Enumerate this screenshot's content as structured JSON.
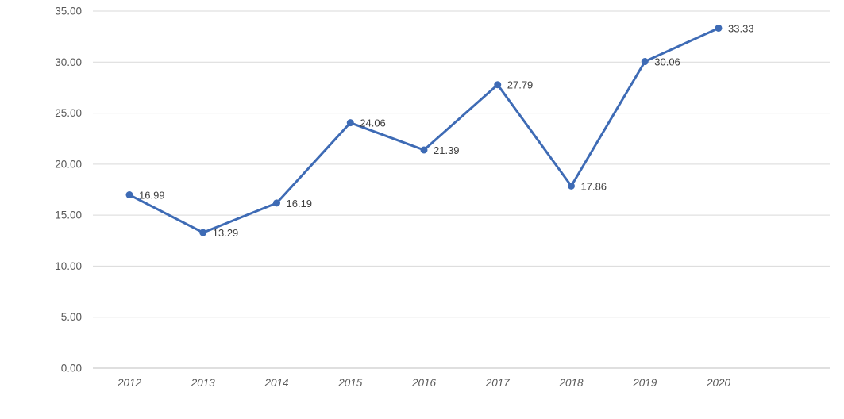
{
  "chart_data": {
    "type": "line",
    "categories": [
      "2012",
      "2013",
      "2014",
      "2015",
      "2016",
      "2017",
      "2018",
      "2019",
      "2020"
    ],
    "series": [
      {
        "name": "series-1",
        "values": [
          16.99,
          13.29,
          16.19,
          24.06,
          21.39,
          27.79,
          17.86,
          30.06,
          33.33
        ]
      }
    ],
    "data_labels": [
      "16.99",
      "13.29",
      "16.19",
      "24.06",
      "21.39",
      "27.79",
      "17.86",
      "30.06",
      "33.33"
    ],
    "title": "",
    "xlabel": "",
    "ylabel": "",
    "ylim": [
      0,
      35
    ],
    "ytick_step": 5,
    "ytick_labels": [
      "0.00",
      "5.00",
      "10.00",
      "15.00",
      "20.00",
      "25.00",
      "30.00",
      "35.00"
    ],
    "grid": true,
    "legend": false,
    "colors": {
      "line": "#3e6bb5",
      "marker": "#3e6bb5",
      "gridline": "#d9d9d9",
      "axis_line": "#bfbfbf",
      "tick_text": "#595959",
      "data_label_text": "#3f3f3f",
      "background": "#ffffff"
    }
  }
}
